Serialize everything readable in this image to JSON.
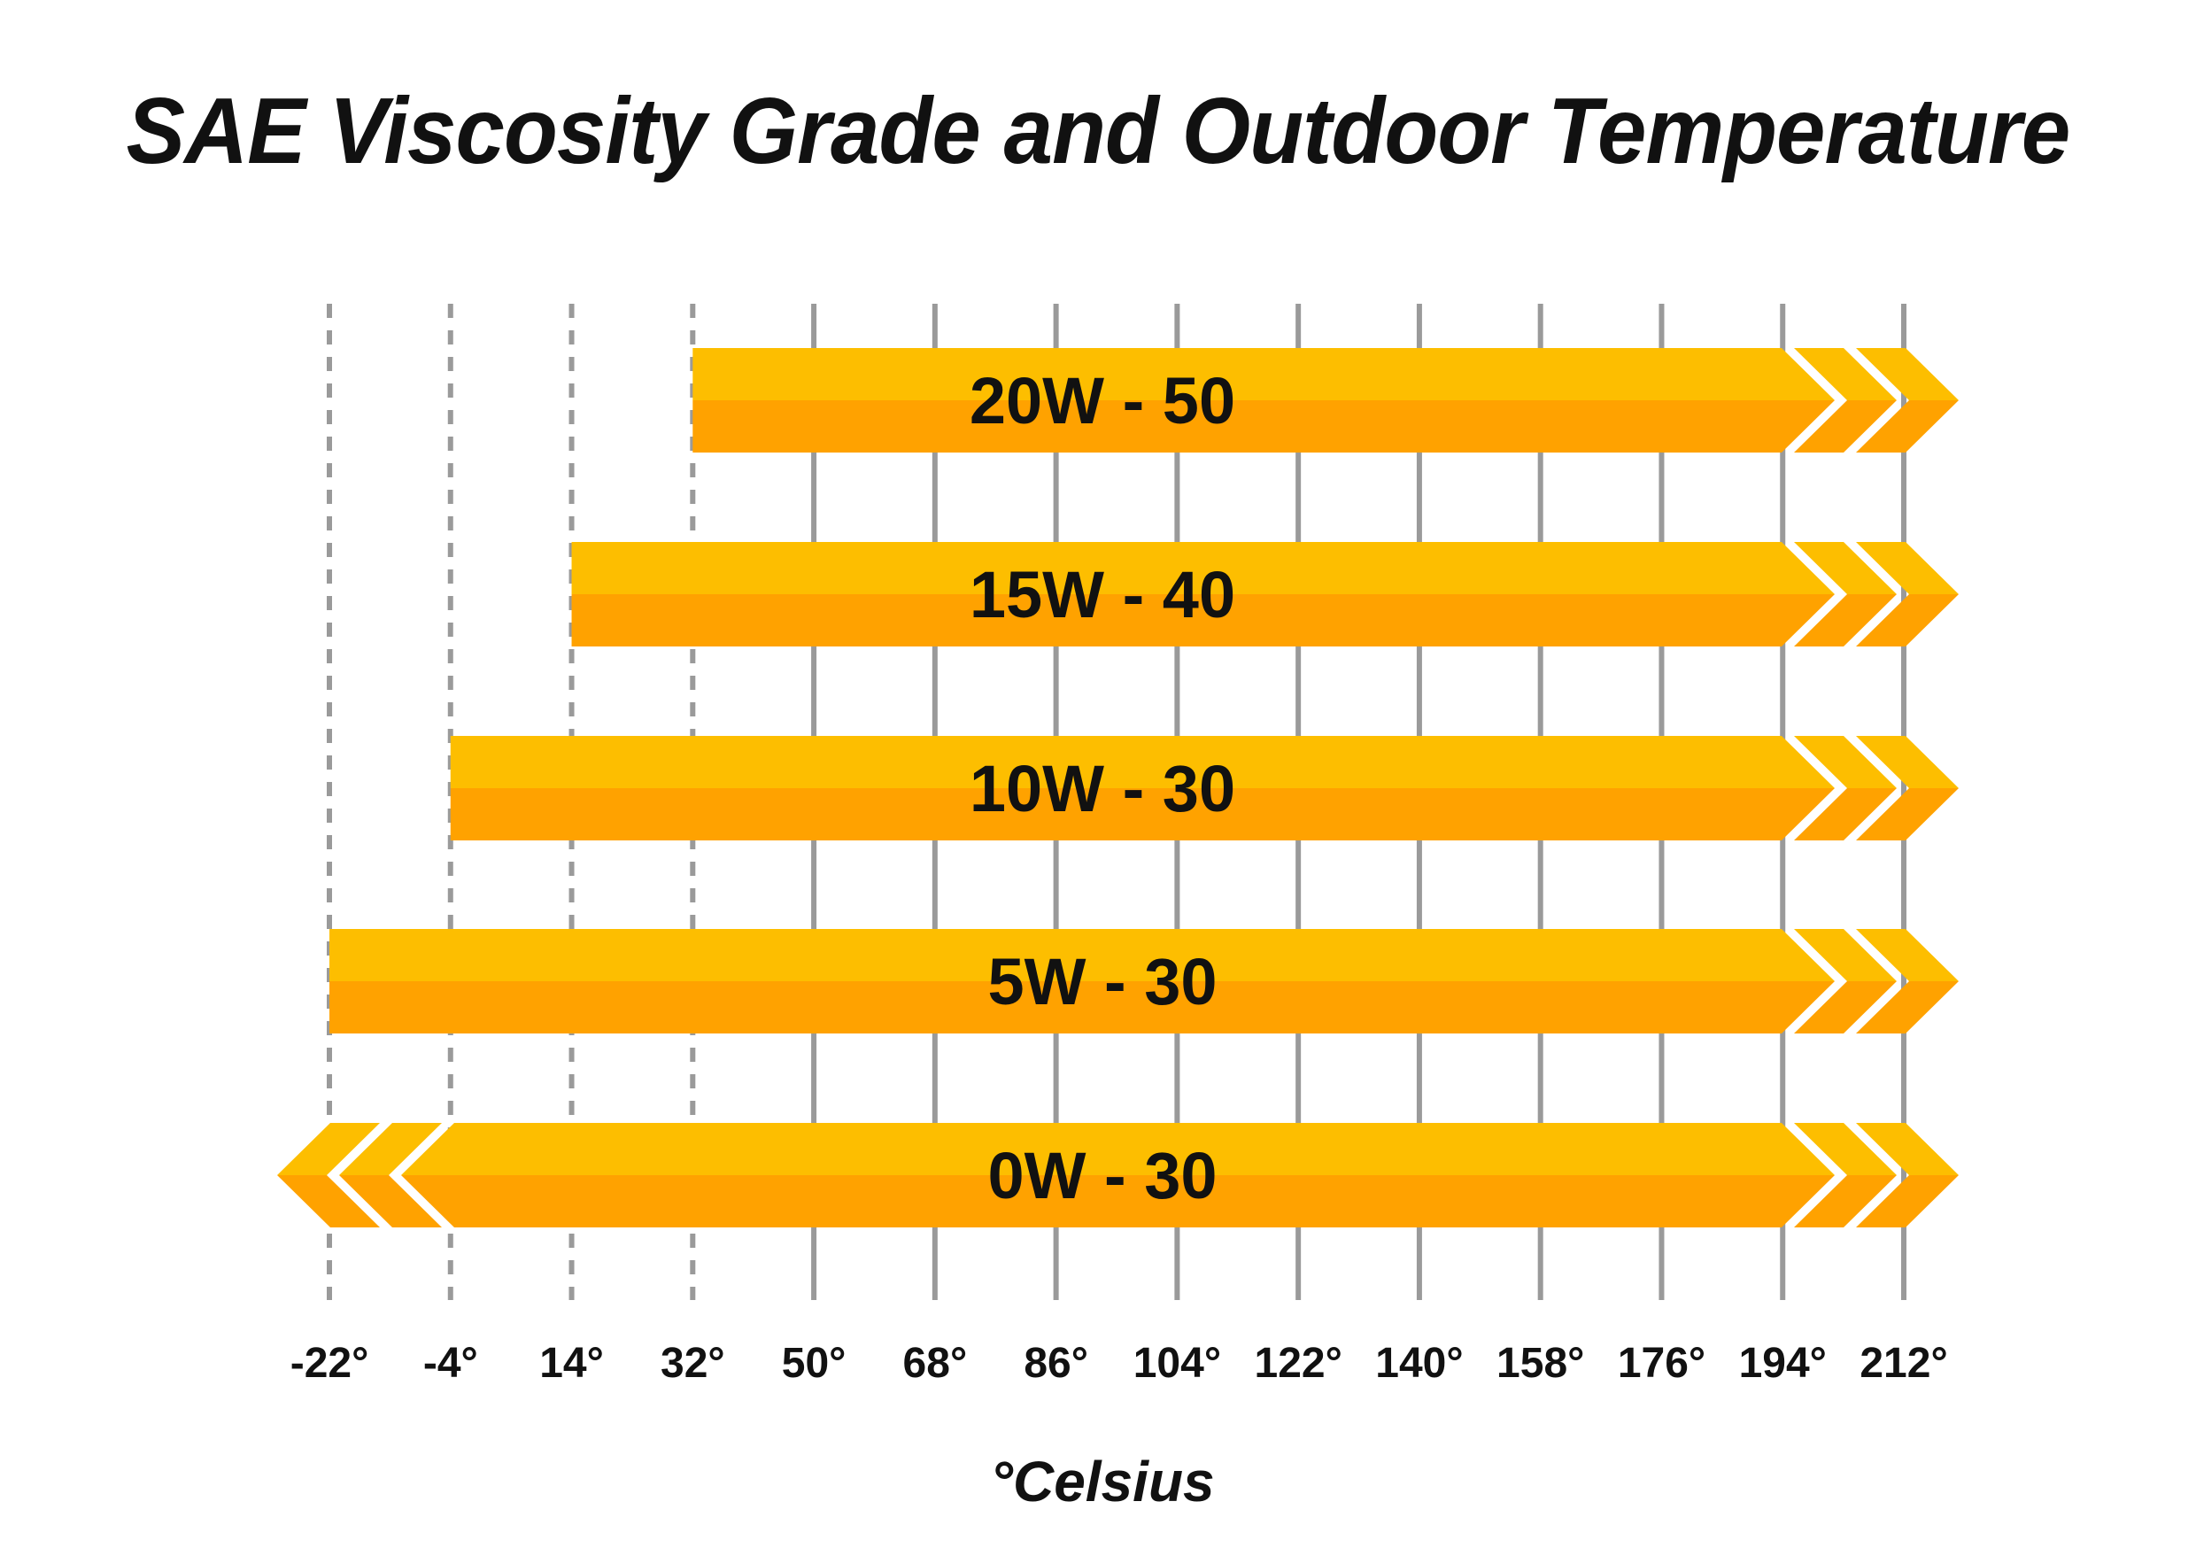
{
  "chart_data": {
    "type": "bar",
    "title": "SAE Viscosity Grade and Outdoor Temperature",
    "xlabel": "°Celsius",
    "ylabel": "",
    "x_ticks": [
      "-22°",
      "-4°",
      "14°",
      "32°",
      "50°",
      "68°",
      "86°",
      "104°",
      "122°",
      "140°",
      "158°",
      "176°",
      "194°",
      "212°"
    ],
    "x_tick_values": [
      -22,
      -4,
      14,
      32,
      50,
      68,
      86,
      104,
      122,
      140,
      158,
      176,
      194,
      212
    ],
    "dashed_ticks": [
      -22,
      -4,
      14,
      32
    ],
    "xlim": [
      -22,
      212
    ],
    "series": [
      {
        "name": "20W - 50",
        "min": 32,
        "max": 212,
        "open_low": false,
        "open_high": true
      },
      {
        "name": "15W - 40",
        "min": 14,
        "max": 212,
        "open_low": false,
        "open_high": true
      },
      {
        "name": "10W - 30",
        "min": -4,
        "max": 212,
        "open_low": false,
        "open_high": true
      },
      {
        "name": "5W - 30",
        "min": -22,
        "max": 212,
        "open_low": false,
        "open_high": true
      },
      {
        "name": "0W - 30",
        "min": -22,
        "max": 212,
        "open_low": true,
        "open_high": true
      }
    ],
    "grid": true,
    "colors": {
      "bar_top": "#FDBE00",
      "bar_bottom": "#FFA200",
      "grid_solid": "#9a9a9a",
      "grid_dashed": "#9a9a9a",
      "text": "#111111"
    }
  }
}
